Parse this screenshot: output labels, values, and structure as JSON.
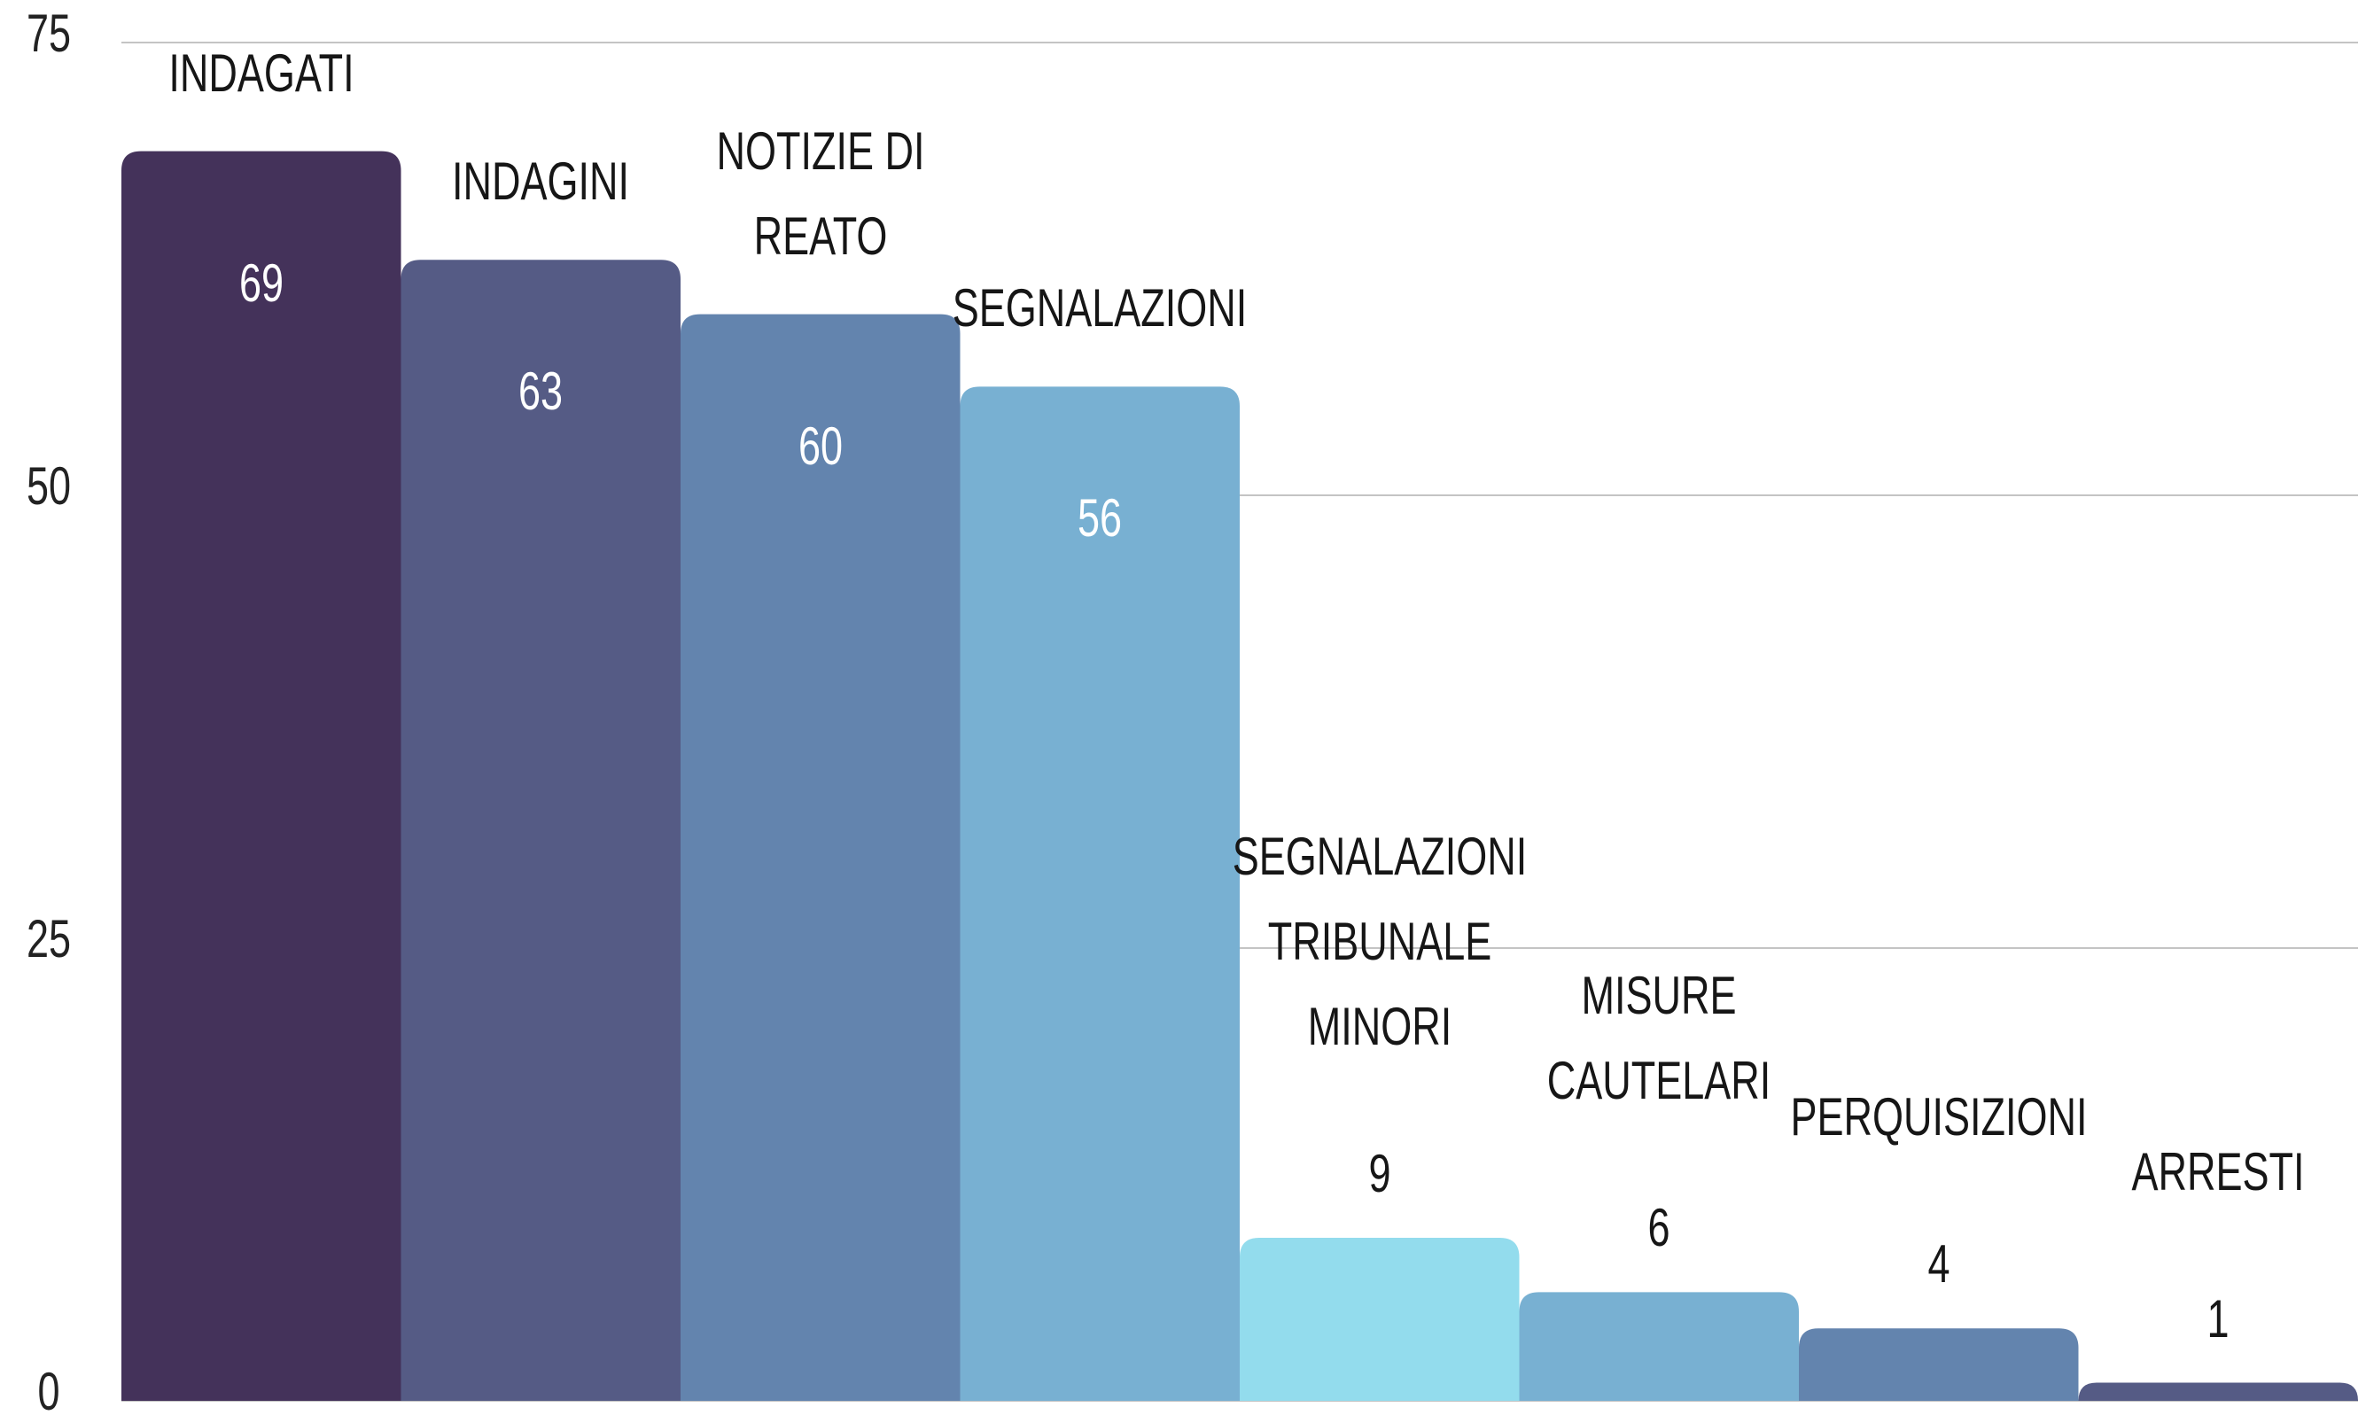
{
  "chart_data": {
    "type": "bar",
    "categories": [
      "INDAGATI",
      "INDAGINI",
      "NOTIZIE DI REATO",
      "SEGNALAZIONI",
      "SEGNALAZIONI TRIBUNALE MINORI",
      "MISURE CAUTELARI",
      "PERQUISIZIONI",
      "ARRESTI"
    ],
    "values": [
      69,
      63,
      60,
      56,
      9,
      6,
      4,
      1
    ],
    "colors": [
      "#44325a",
      "#555b85",
      "#6384ae",
      "#78b0d2",
      "#93dced",
      "#78b0d2",
      "#6384ae",
      "#555b85"
    ],
    "ylim": [
      0,
      75
    ],
    "yticks": [
      0,
      25,
      50,
      75
    ],
    "grid": true
  }
}
